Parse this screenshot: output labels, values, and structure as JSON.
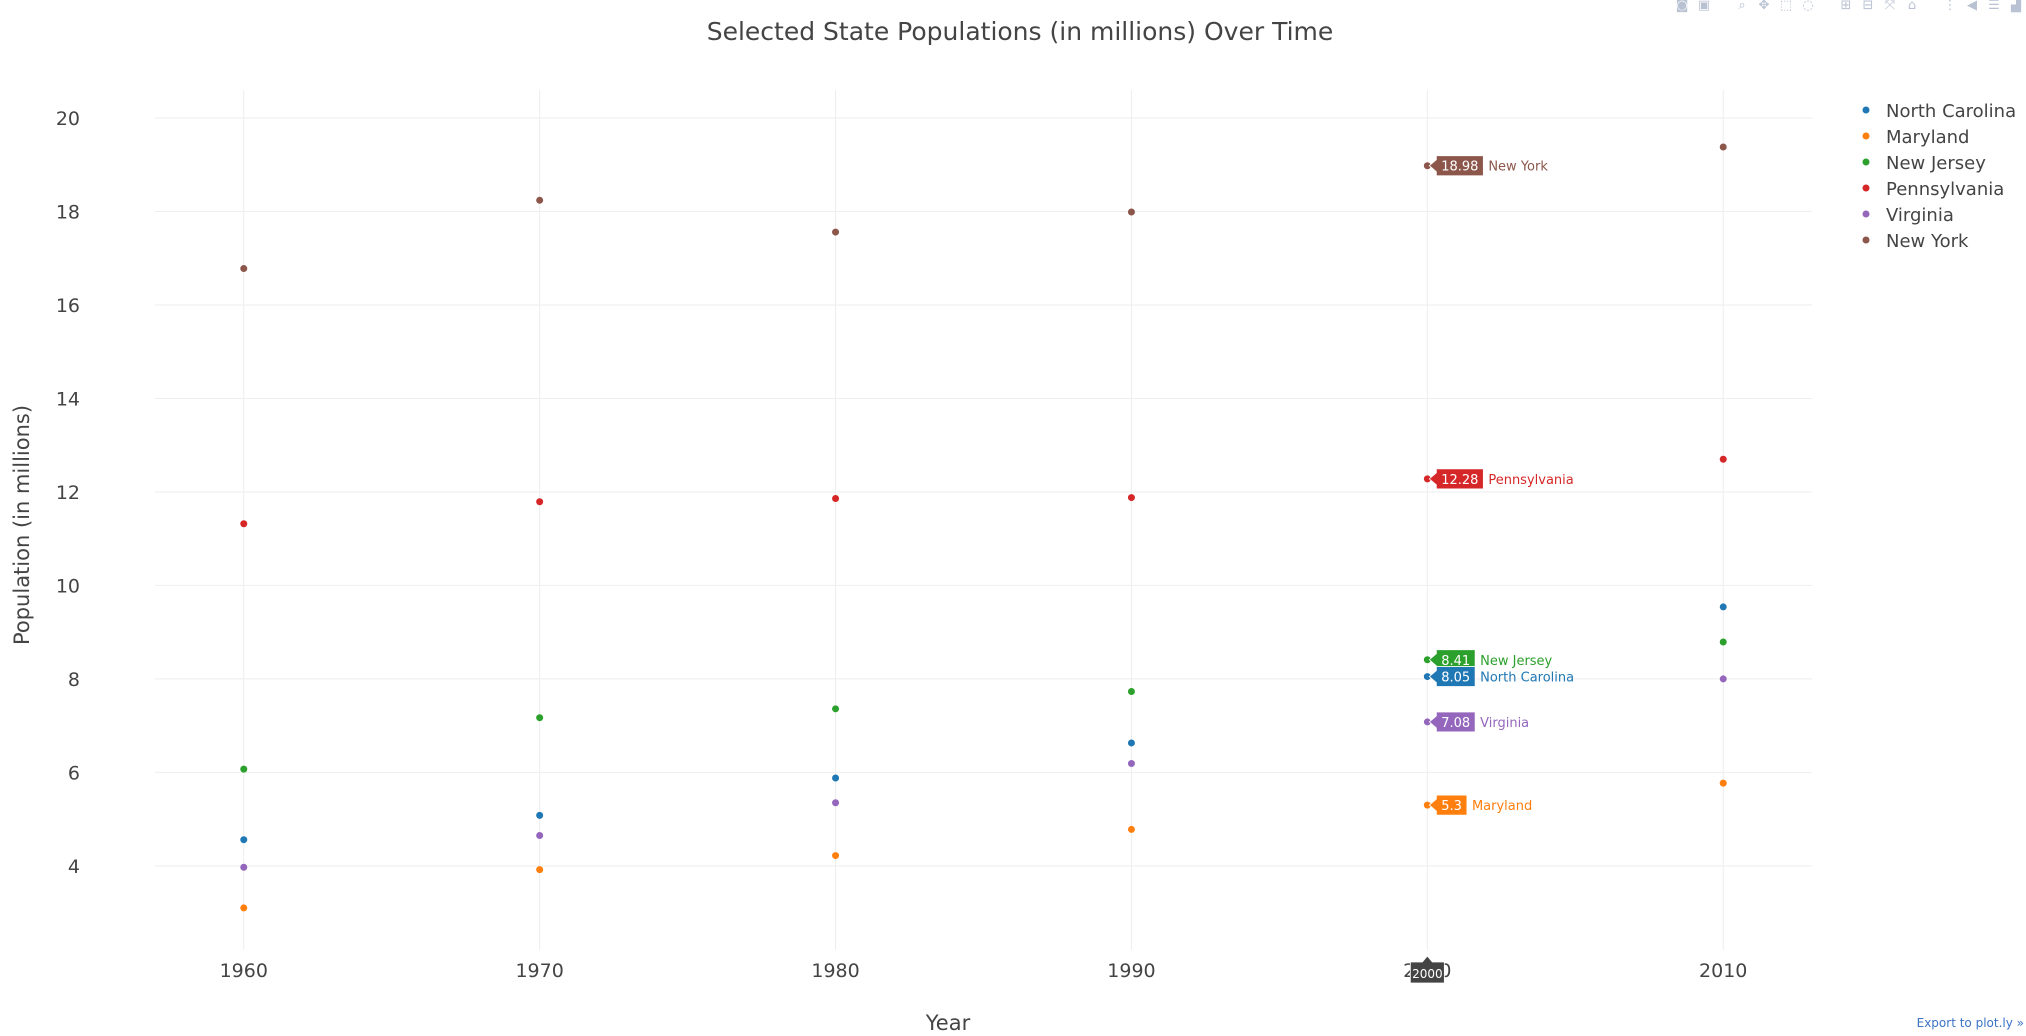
{
  "chart_data": {
    "type": "scatter",
    "title": "Selected State Populations (in millions) Over Time",
    "xlabel": "Year",
    "ylabel": "Population (in millions)",
    "x": [
      1960,
      1970,
      1980,
      1990,
      2000,
      2010
    ],
    "x_ticks": [
      "1960",
      "1970",
      "1980",
      "1990",
      "2000",
      "2010"
    ],
    "xlim": [
      1957,
      2013
    ],
    "y_ticks": [
      "4",
      "6",
      "8",
      "10",
      "12",
      "14",
      "16",
      "18",
      "20"
    ],
    "ylim": [
      2.2,
      20.6
    ],
    "grid": true,
    "legend_position": "top-right",
    "series": [
      {
        "name": "North Carolina",
        "color": "#1f77b4",
        "values": [
          4.56,
          5.08,
          5.88,
          6.63,
          8.05,
          9.54
        ]
      },
      {
        "name": "Maryland",
        "color": "#ff7f0e",
        "values": [
          3.1,
          3.92,
          4.22,
          4.78,
          5.3,
          5.77
        ]
      },
      {
        "name": "New Jersey",
        "color": "#2ca02c",
        "values": [
          6.07,
          7.17,
          7.36,
          7.73,
          8.41,
          8.79
        ]
      },
      {
        "name": "Pennsylvania",
        "color": "#d62728",
        "values": [
          11.32,
          11.79,
          11.86,
          11.88,
          12.28,
          12.7
        ]
      },
      {
        "name": "Virginia",
        "color": "#9467bd",
        "values": [
          3.97,
          4.65,
          5.35,
          6.19,
          7.08,
          8.0
        ]
      },
      {
        "name": "New York",
        "color": "#8c564b",
        "values": [
          16.78,
          18.24,
          17.56,
          17.99,
          18.98,
          19.38
        ]
      }
    ],
    "hover": {
      "x_label": "2000",
      "labels": [
        {
          "series": "New York",
          "value": "18.98",
          "name": "New York"
        },
        {
          "series": "Pennsylvania",
          "value": "12.28",
          "name": "Pennsylvania"
        },
        {
          "series": "New Jersey",
          "value": "8.41",
          "name": "New Jersey"
        },
        {
          "series": "North Carolina",
          "value": "8.05",
          "name": "North Carolina"
        },
        {
          "series": "Virginia",
          "value": "7.08",
          "name": "Virginia"
        },
        {
          "series": "Maryland",
          "value": "5.3",
          "name": "Maryland"
        }
      ]
    }
  },
  "toolbar": {
    "buttons": [
      {
        "name": "camera-icon",
        "glyph": "◙"
      },
      {
        "name": "save-icon",
        "glyph": "▣"
      },
      {
        "name": "zoom-icon",
        "glyph": "⌕"
      },
      {
        "name": "pan-icon",
        "glyph": "✥"
      },
      {
        "name": "box-select-icon",
        "glyph": "⬚"
      },
      {
        "name": "lasso-icon",
        "glyph": "◌"
      },
      {
        "name": "zoom-in-icon",
        "glyph": "⊞"
      },
      {
        "name": "zoom-out-icon",
        "glyph": "⊟"
      },
      {
        "name": "autoscale-icon",
        "glyph": "⤧"
      },
      {
        "name": "home-icon",
        "glyph": "⌂"
      },
      {
        "name": "spike-lines-icon",
        "glyph": "⋮"
      },
      {
        "name": "hover-closest-icon",
        "glyph": "◀"
      },
      {
        "name": "hover-compare-icon",
        "glyph": "☰"
      },
      {
        "name": "plotly-logo-icon",
        "glyph": "▟"
      }
    ]
  },
  "export_link": "Export to plot.ly »"
}
